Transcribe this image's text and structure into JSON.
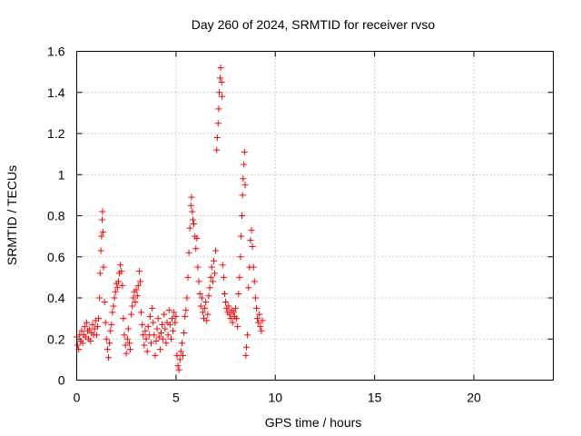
{
  "chart_data": {
    "type": "scatter",
    "title": "Day 260 of 2024, SRMTID for receiver rvso",
    "xlabel": "GPS time / hours",
    "ylabel": "SRMTID / TECUs",
    "xlim": [
      0,
      24
    ],
    "ylim": [
      0,
      1.6
    ],
    "xticks": [
      0,
      5,
      10,
      15,
      20
    ],
    "xtick_labels": [
      "0",
      "5",
      "10",
      "15",
      "20"
    ],
    "yticks": [
      0,
      0.2,
      0.4,
      0.6,
      0.8,
      1.0,
      1.2,
      1.4,
      1.6
    ],
    "ytick_labels": [
      "0",
      "0.2",
      "0.4",
      "0.6",
      "0.8",
      "1",
      "1.2",
      "1.4",
      "1.6"
    ],
    "grid": true,
    "marker": "+",
    "color": "#ff0000",
    "series": [
      {
        "name": "SRMTID",
        "points": [
          [
            0.0,
            0.21
          ],
          [
            0.05,
            0.17
          ],
          [
            0.1,
            0.15
          ],
          [
            0.15,
            0.22
          ],
          [
            0.2,
            0.19
          ],
          [
            0.25,
            0.24
          ],
          [
            0.3,
            0.18
          ],
          [
            0.35,
            0.22
          ],
          [
            0.4,
            0.26
          ],
          [
            0.45,
            0.21
          ],
          [
            0.5,
            0.28
          ],
          [
            0.55,
            0.24
          ],
          [
            0.6,
            0.2
          ],
          [
            0.65,
            0.25
          ],
          [
            0.7,
            0.19
          ],
          [
            0.75,
            0.23
          ],
          [
            0.8,
            0.27
          ],
          [
            0.85,
            0.22
          ],
          [
            0.9,
            0.25
          ],
          [
            0.95,
            0.29
          ],
          [
            1.0,
            0.22
          ],
          [
            1.05,
            0.26
          ],
          [
            1.1,
            0.3
          ],
          [
            1.15,
            0.4
          ],
          [
            1.18,
            0.52
          ],
          [
            1.22,
            0.63
          ],
          [
            1.25,
            0.7
          ],
          [
            1.28,
            0.78
          ],
          [
            1.3,
            0.82
          ],
          [
            1.32,
            0.72
          ],
          [
            1.35,
            0.55
          ],
          [
            1.4,
            0.38
          ],
          [
            1.45,
            0.28
          ],
          [
            1.5,
            0.2
          ],
          [
            1.55,
            0.15
          ],
          [
            1.6,
            0.11
          ],
          [
            1.65,
            0.18
          ],
          [
            1.7,
            0.24
          ],
          [
            1.75,
            0.27
          ],
          [
            1.8,
            0.33
          ],
          [
            1.85,
            0.36
          ],
          [
            1.9,
            0.4
          ],
          [
            1.95,
            0.43
          ],
          [
            2.0,
            0.47
          ],
          [
            2.05,
            0.45
          ],
          [
            2.1,
            0.48
          ],
          [
            2.15,
            0.52
          ],
          [
            2.2,
            0.56
          ],
          [
            2.25,
            0.53
          ],
          [
            2.3,
            0.46
          ],
          [
            2.35,
            0.3
          ],
          [
            2.4,
            0.22
          ],
          [
            2.45,
            0.17
          ],
          [
            2.5,
            0.13
          ],
          [
            2.55,
            0.2
          ],
          [
            2.6,
            0.25
          ],
          [
            2.65,
            0.18
          ],
          [
            2.7,
            0.15
          ],
          [
            2.75,
            0.32
          ],
          [
            2.8,
            0.36
          ],
          [
            2.85,
            0.4
          ],
          [
            2.9,
            0.43
          ],
          [
            2.95,
            0.38
          ],
          [
            3.0,
            0.44
          ],
          [
            3.05,
            0.41
          ],
          [
            3.1,
            0.46
          ],
          [
            3.15,
            0.53
          ],
          [
            3.2,
            0.48
          ],
          [
            3.25,
            0.33
          ],
          [
            3.3,
            0.27
          ],
          [
            3.35,
            0.22
          ],
          [
            3.4,
            0.17
          ],
          [
            3.45,
            0.24
          ],
          [
            3.5,
            0.2
          ],
          [
            3.55,
            0.14
          ],
          [
            3.6,
            0.26
          ],
          [
            3.65,
            0.22
          ],
          [
            3.7,
            0.31
          ],
          [
            3.75,
            0.18
          ],
          [
            3.8,
            0.35
          ],
          [
            3.85,
            0.28
          ],
          [
            3.9,
            0.22
          ],
          [
            3.95,
            0.12
          ],
          [
            4.0,
            0.19
          ],
          [
            4.05,
            0.25
          ],
          [
            4.1,
            0.3
          ],
          [
            4.15,
            0.21
          ],
          [
            4.2,
            0.15
          ],
          [
            4.25,
            0.23
          ],
          [
            4.3,
            0.27
          ],
          [
            4.35,
            0.2
          ],
          [
            4.4,
            0.32
          ],
          [
            4.45,
            0.25
          ],
          [
            4.5,
            0.18
          ],
          [
            4.55,
            0.28
          ],
          [
            4.6,
            0.22
          ],
          [
            4.65,
            0.34
          ],
          [
            4.7,
            0.27
          ],
          [
            4.75,
            0.2
          ],
          [
            4.8,
            0.3
          ],
          [
            4.85,
            0.24
          ],
          [
            4.9,
            0.33
          ],
          [
            4.95,
            0.28
          ],
          [
            5.0,
            0.31
          ],
          [
            5.05,
            0.12
          ],
          [
            5.1,
            0.07
          ],
          [
            5.15,
            0.05
          ],
          [
            5.2,
            0.1
          ],
          [
            5.25,
            0.14
          ],
          [
            5.3,
            0.18
          ],
          [
            5.35,
            0.12
          ],
          [
            5.4,
            0.23
          ],
          [
            5.45,
            0.31
          ],
          [
            5.5,
            0.34
          ],
          [
            5.55,
            0.4
          ],
          [
            5.6,
            0.5
          ],
          [
            5.65,
            0.62
          ],
          [
            5.7,
            0.74
          ],
          [
            5.75,
            0.85
          ],
          [
            5.78,
            0.89
          ],
          [
            5.82,
            0.82
          ],
          [
            5.85,
            0.78
          ],
          [
            5.9,
            0.76
          ],
          [
            5.95,
            0.7
          ],
          [
            6.0,
            0.64
          ],
          [
            6.05,
            0.69
          ],
          [
            6.1,
            0.55
          ],
          [
            6.15,
            0.48
          ],
          [
            6.2,
            0.42
          ],
          [
            6.25,
            0.36
          ],
          [
            6.3,
            0.4
          ],
          [
            6.35,
            0.33
          ],
          [
            6.4,
            0.3
          ],
          [
            6.45,
            0.35
          ],
          [
            6.5,
            0.38
          ],
          [
            6.55,
            0.29
          ],
          [
            6.6,
            0.32
          ],
          [
            6.65,
            0.41
          ],
          [
            6.7,
            0.45
          ],
          [
            6.75,
            0.5
          ],
          [
            6.8,
            0.55
          ],
          [
            6.85,
            0.48
          ],
          [
            6.9,
            0.58
          ],
          [
            6.95,
            0.52
          ],
          [
            7.0,
            0.63
          ],
          [
            7.05,
            1.12
          ],
          [
            7.08,
            1.18
          ],
          [
            7.12,
            1.25
          ],
          [
            7.15,
            1.32
          ],
          [
            7.18,
            1.4
          ],
          [
            7.22,
            1.47
          ],
          [
            7.25,
            1.52
          ],
          [
            7.3,
            1.45
          ],
          [
            7.32,
            1.38
          ],
          [
            7.35,
            0.56
          ],
          [
            7.4,
            0.5
          ],
          [
            7.45,
            0.42
          ],
          [
            7.5,
            0.38
          ],
          [
            7.55,
            0.35
          ],
          [
            7.6,
            0.33
          ],
          [
            7.65,
            0.36
          ],
          [
            7.7,
            0.32
          ],
          [
            7.75,
            0.3
          ],
          [
            7.8,
            0.34
          ],
          [
            7.85,
            0.28
          ],
          [
            7.9,
            0.33
          ],
          [
            7.95,
            0.31
          ],
          [
            8.0,
            0.35
          ],
          [
            8.05,
            0.3
          ],
          [
            8.1,
            0.26
          ],
          [
            8.15,
            0.42
          ],
          [
            8.2,
            0.5
          ],
          [
            8.25,
            0.6
          ],
          [
            8.28,
            0.7
          ],
          [
            8.32,
            0.8
          ],
          [
            8.35,
            0.9
          ],
          [
            8.38,
            0.98
          ],
          [
            8.42,
            1.05
          ],
          [
            8.45,
            1.11
          ],
          [
            8.48,
            0.95
          ],
          [
            8.52,
            0.12
          ],
          [
            8.55,
            0.16
          ],
          [
            8.6,
            0.22
          ],
          [
            8.65,
            0.45
          ],
          [
            8.7,
            0.55
          ],
          [
            8.75,
            0.68
          ],
          [
            8.8,
            0.73
          ],
          [
            8.85,
            0.65
          ],
          [
            8.9,
            0.55
          ],
          [
            8.95,
            0.48
          ],
          [
            9.0,
            0.4
          ],
          [
            9.05,
            0.35
          ],
          [
            9.1,
            0.3
          ],
          [
            9.15,
            0.28
          ],
          [
            9.2,
            0.32
          ],
          [
            9.25,
            0.26
          ],
          [
            9.3,
            0.24
          ],
          [
            9.35,
            0.29
          ]
        ]
      }
    ]
  }
}
